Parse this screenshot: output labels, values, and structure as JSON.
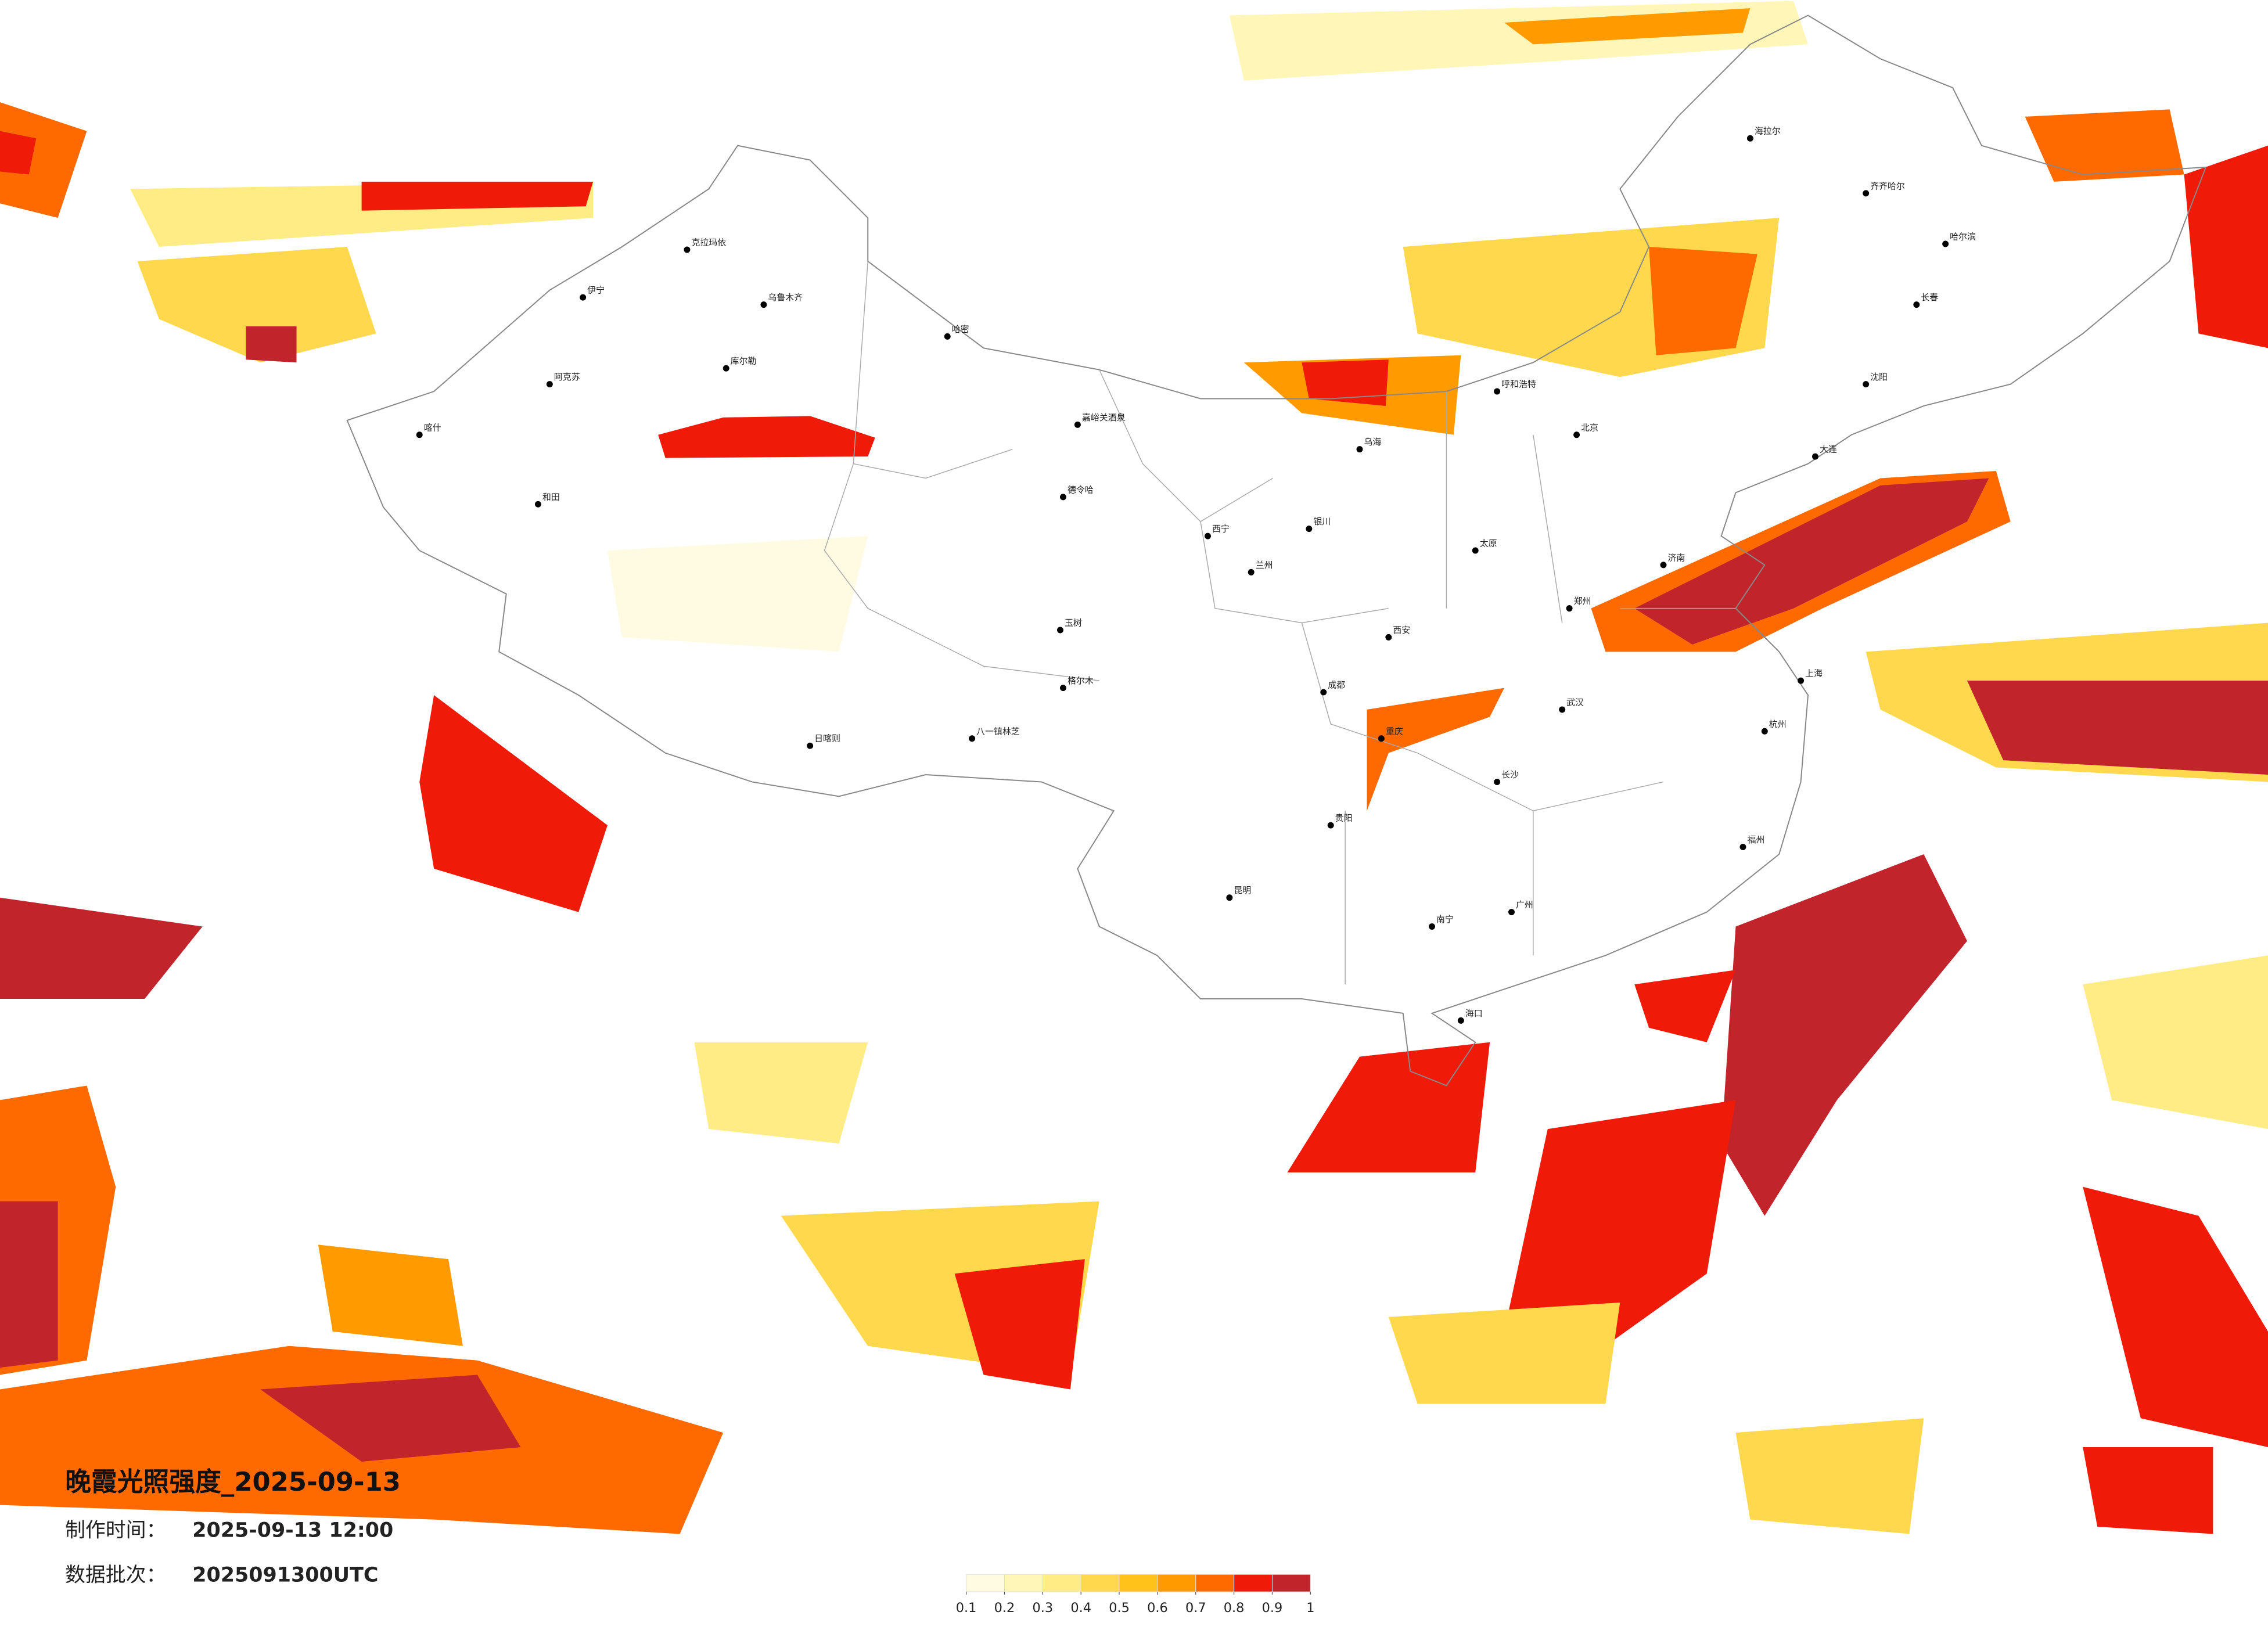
{
  "title": "晚霞光照强度_2025-09-13",
  "info": {
    "made_label": "制作时间：",
    "made_value": "2025-09-13 12:00",
    "batch_label": "数据批次：",
    "batch_value": "2025091300UTC"
  },
  "colorbar": {
    "ticks": [
      0.1,
      0.2,
      0.3,
      0.4,
      0.5,
      0.6,
      0.7,
      0.8,
      0.9,
      1
    ],
    "colors": [
      "#fffbe3",
      "#fff6b8",
      "#ffec85",
      "#ffd84d",
      "#ffc21a",
      "#ff9a00",
      "#ff6a00",
      "#f01a08",
      "#c2242c"
    ]
  },
  "cities": [
    "克拉玛依",
    "乌鲁木齐",
    "哈密",
    "库尔勒",
    "阿克苏",
    "和田",
    "伊宁",
    "喀什",
    "德令哈",
    "嘉峪关酒泉",
    "格尔木",
    "日喀则",
    "八一镇林芝",
    "玉树",
    "乌海",
    "银川",
    "兰州",
    "西宁",
    "成都",
    "重庆",
    "昆明",
    "贵阳",
    "南宁",
    "广州",
    "长沙",
    "武汉",
    "郑州",
    "西安",
    "太原",
    "北京",
    "济南",
    "上海",
    "杭州",
    "福州",
    "呼和浩特",
    "海拉尔",
    "齐齐哈尔",
    "哈尔滨",
    "长春",
    "沈阳",
    "大连",
    "海口"
  ]
}
